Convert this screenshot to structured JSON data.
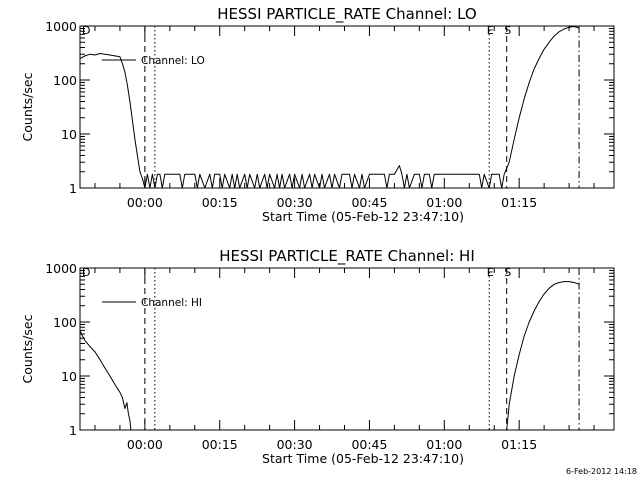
{
  "footer": {
    "timestamp": "6-Feb-2012 14:18"
  },
  "chart_data": [
    {
      "type": "line",
      "title": "HESSI PARTICLE_RATE Channel: LO",
      "xlabel": "Start Time (05-Feb-12 23:47:10)",
      "ylabel": "Counts/sec",
      "yscale": "log",
      "ylim": [
        1,
        1000
      ],
      "xlim_minutes": [
        -13,
        94
      ],
      "x_tick_minutes": [
        0,
        15,
        30,
        45,
        60,
        75
      ],
      "x_tick_labels": [
        "00:00",
        "00:15",
        "00:30",
        "00:45",
        "01:00",
        "01:15"
      ],
      "y_tick_values": [
        1,
        10,
        100,
        1000
      ],
      "y_tick_labels": [
        "1",
        "10",
        "100",
        "1000"
      ],
      "legend": {
        "entries": [
          "Channel: LO"
        ],
        "placement": "top-left"
      },
      "markers": [
        {
          "label": "D",
          "minute": -13,
          "style": "solid"
        },
        {
          "label": "",
          "minute": 0,
          "style": "dashed"
        },
        {
          "label": "",
          "minute": 2,
          "style": "dotted"
        },
        {
          "label": "E",
          "minute": 69,
          "style": "dotted"
        },
        {
          "label": "S",
          "minute": 72.5,
          "style": "dashed"
        },
        {
          "label": "",
          "minute": 87,
          "style": "dashdot"
        }
      ],
      "series": [
        {
          "name": "Channel: LO",
          "points": [
            [
              -13,
              250
            ],
            [
              -12,
              280
            ],
            [
              -11,
              300
            ],
            [
              -10,
              290
            ],
            [
              -9,
              310
            ],
            [
              -8,
              300
            ],
            [
              -7,
              290
            ],
            [
              -6,
              280
            ],
            [
              -5,
              270
            ],
            [
              -4.5,
              200
            ],
            [
              -4,
              140
            ],
            [
              -3.5,
              80
            ],
            [
              -3,
              40
            ],
            [
              -2.5,
              18
            ],
            [
              -2,
              8
            ],
            [
              -1.5,
              4
            ],
            [
              -1,
              2
            ],
            [
              -0.5,
              1.5
            ],
            [
              0,
              1
            ],
            [
              0.5,
              1.8
            ],
            [
              1,
              1
            ],
            [
              1.5,
              1.8
            ],
            [
              2,
              1
            ],
            [
              2.5,
              1.8
            ],
            [
              3,
              1.8
            ],
            [
              3.5,
              1
            ],
            [
              4,
              1.8
            ],
            [
              5,
              1.8
            ],
            [
              6,
              1.8
            ],
            [
              7,
              1.8
            ],
            [
              7.5,
              1
            ],
            [
              8,
              1.8
            ],
            [
              9,
              1.8
            ],
            [
              10,
              1.8
            ],
            [
              10.5,
              1
            ],
            [
              11,
              1.8
            ],
            [
              12,
              1
            ],
            [
              13,
              1.8
            ],
            [
              13.5,
              1
            ],
            [
              14,
              1.8
            ],
            [
              15,
              1.8
            ],
            [
              15.5,
              1
            ],
            [
              16,
              1.8
            ],
            [
              17,
              1
            ],
            [
              17.5,
              1.8
            ],
            [
              18,
              1
            ],
            [
              18.5,
              1.8
            ],
            [
              19,
              1
            ],
            [
              20,
              1.8
            ],
            [
              20.5,
              1
            ],
            [
              21,
              1.8
            ],
            [
              22,
              1
            ],
            [
              22.5,
              1.8
            ],
            [
              23,
              1
            ],
            [
              24,
              1.8
            ],
            [
              24.5,
              1
            ],
            [
              25,
              1.8
            ],
            [
              26,
              1
            ],
            [
              26.5,
              1.8
            ],
            [
              27,
              1
            ],
            [
              27.5,
              1.8
            ],
            [
              28,
              1
            ],
            [
              29,
              1.8
            ],
            [
              29.5,
              1
            ],
            [
              30,
              1.8
            ],
            [
              31,
              1
            ],
            [
              31.5,
              1.8
            ],
            [
              32,
              1
            ],
            [
              33,
              1.8
            ],
            [
              33.5,
              1
            ],
            [
              34,
              1.8
            ],
            [
              35,
              1
            ],
            [
              35.5,
              1.8
            ],
            [
              36,
              1
            ],
            [
              37,
              1.8
            ],
            [
              37.5,
              1
            ],
            [
              38,
              1.8
            ],
            [
              39,
              1
            ],
            [
              39.5,
              1.8
            ],
            [
              40,
              1.8
            ],
            [
              41,
              1.8
            ],
            [
              41.5,
              1
            ],
            [
              42,
              1.8
            ],
            [
              43,
              1
            ],
            [
              43.5,
              1.8
            ],
            [
              44,
              1
            ],
            [
              45,
              1.8
            ],
            [
              46,
              1.8
            ],
            [
              47,
              1.8
            ],
            [
              48,
              1.8
            ],
            [
              48.5,
              1
            ],
            [
              49,
              1.8
            ],
            [
              50,
              1.8
            ],
            [
              51,
              2.6
            ],
            [
              51.5,
              1.8
            ],
            [
              52,
              1
            ],
            [
              52.5,
              1.8
            ],
            [
              53,
              1
            ],
            [
              54,
              1.8
            ],
            [
              55,
              1.8
            ],
            [
              55.5,
              1
            ],
            [
              56,
              1.8
            ],
            [
              57,
              1.8
            ],
            [
              57.5,
              1
            ],
            [
              58,
              1.8
            ],
            [
              59,
              1.8
            ],
            [
              60,
              1.8
            ],
            [
              61,
              1.8
            ],
            [
              62,
              1.8
            ],
            [
              63,
              1.8
            ],
            [
              64,
              1.8
            ],
            [
              65,
              1.8
            ],
            [
              66,
              1.8
            ],
            [
              67,
              1.8
            ],
            [
              67.5,
              1
            ],
            [
              68,
              1.8
            ],
            [
              69,
              1
            ],
            [
              69.5,
              1.8
            ],
            [
              70,
              1.8
            ],
            [
              71,
              1.8
            ],
            [
              71.5,
              1
            ],
            [
              72,
              1.8
            ],
            [
              73,
              3
            ],
            [
              74,
              8
            ],
            [
              75,
              20
            ],
            [
              76,
              45
            ],
            [
              77,
              90
            ],
            [
              78,
              160
            ],
            [
              79,
              250
            ],
            [
              80,
              370
            ],
            [
              81,
              500
            ],
            [
              82,
              650
            ],
            [
              83,
              780
            ],
            [
              84,
              880
            ],
            [
              85,
              950
            ],
            [
              86,
              980
            ],
            [
              87,
              920
            ]
          ]
        }
      ]
    },
    {
      "type": "line",
      "title": "HESSI PARTICLE_RATE Channel: HI",
      "xlabel": "Start Time (05-Feb-12 23:47:10)",
      "ylabel": "Counts/sec",
      "yscale": "log",
      "ylim": [
        1,
        1000
      ],
      "xlim_minutes": [
        -13,
        94
      ],
      "x_tick_minutes": [
        0,
        15,
        30,
        45,
        60,
        75
      ],
      "x_tick_labels": [
        "00:00",
        "00:15",
        "00:30",
        "00:45",
        "01:00",
        "01:15"
      ],
      "y_tick_values": [
        1,
        10,
        100,
        1000
      ],
      "y_tick_labels": [
        "1",
        "10",
        "100",
        "1000"
      ],
      "legend": {
        "entries": [
          "Channel: HI"
        ],
        "placement": "top-left"
      },
      "markers": [
        {
          "label": "D",
          "minute": -13,
          "style": "solid"
        },
        {
          "label": "",
          "minute": 0,
          "style": "dashed"
        },
        {
          "label": "",
          "minute": 2,
          "style": "dotted"
        },
        {
          "label": "E",
          "minute": 69,
          "style": "dotted"
        },
        {
          "label": "S",
          "minute": 72.5,
          "style": "dashed"
        },
        {
          "label": "",
          "minute": 87,
          "style": "dashdot"
        }
      ],
      "series": [
        {
          "name": "Channel: HI",
          "points": [
            [
              -13,
              70
            ],
            [
              -12.5,
              55
            ],
            [
              -12,
              45
            ],
            [
              -11,
              35
            ],
            [
              -10,
              28
            ],
            [
              -9,
              20
            ],
            [
              -8,
              14
            ],
            [
              -7,
              10
            ],
            [
              -6,
              7
            ],
            [
              -5,
              5
            ],
            [
              -4.5,
              4
            ],
            [
              -4,
              2.5
            ],
            [
              -3.6,
              3.2
            ],
            [
              -3.3,
              2
            ],
            [
              -3,
              1.5
            ],
            [
              -2.8,
              1
            ]
          ]
        },
        {
          "name": "Channel: HI",
          "points": [
            [
              72.5,
              1
            ],
            [
              73,
              3
            ],
            [
              74,
              10
            ],
            [
              75,
              25
            ],
            [
              76,
              55
            ],
            [
              77,
              100
            ],
            [
              78,
              160
            ],
            [
              79,
              240
            ],
            [
              80,
              330
            ],
            [
              81,
              420
            ],
            [
              82,
              500
            ],
            [
              83,
              540
            ],
            [
              84,
              560
            ],
            [
              85,
              560
            ],
            [
              86,
              540
            ],
            [
              87,
              500
            ]
          ]
        }
      ]
    }
  ]
}
